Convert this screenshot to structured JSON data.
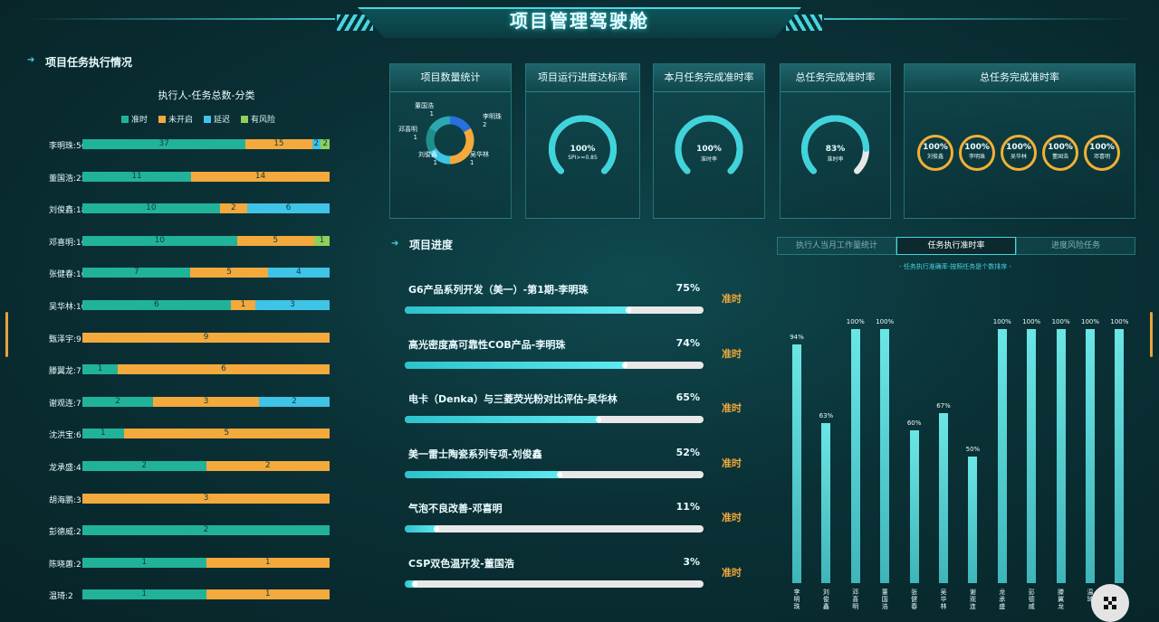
{
  "header": {
    "title": "项目管理驾驶舱"
  },
  "left": {
    "section_title": "项目任务执行情况",
    "chart_title": "执行人-任务总数-分类",
    "colors": {
      "on_time": "#21b39a",
      "not_started": "#f4a93c",
      "delayed": "#3fc3e6",
      "at_risk": "#8fcf5a"
    },
    "legend": [
      "准时",
      "未开启",
      "延迟",
      "有风险"
    ],
    "rows": [
      {
        "label": "李明珠:56",
        "segs": [
          37,
          15,
          2,
          2
        ]
      },
      {
        "label": "董国浩:25",
        "segs": [
          11,
          14,
          0,
          0
        ]
      },
      {
        "label": "刘俊鑫:18",
        "segs": [
          10,
          2,
          6,
          0
        ]
      },
      {
        "label": "邓喜明:16",
        "segs": [
          10,
          5,
          0,
          1
        ]
      },
      {
        "label": "张健春:16",
        "segs": [
          7,
          5,
          4,
          0
        ]
      },
      {
        "label": "吴华林:10",
        "segs": [
          6,
          1,
          3,
          0
        ]
      },
      {
        "label": "甄泽宇:9",
        "segs": [
          0,
          9,
          0,
          0
        ]
      },
      {
        "label": "滕翼龙:7",
        "segs": [
          1,
          6,
          0,
          0
        ]
      },
      {
        "label": "谢观连:7",
        "segs": [
          2,
          3,
          2,
          0
        ]
      },
      {
        "label": "沈洪宝:6",
        "segs": [
          1,
          5,
          0,
          0
        ]
      },
      {
        "label": "龙承盛:4",
        "segs": [
          2,
          2,
          0,
          0
        ]
      },
      {
        "label": "胡海鹏:3",
        "segs": [
          0,
          3,
          0,
          0
        ]
      },
      {
        "label": "彭德威:2",
        "segs": [
          2,
          0,
          0,
          0
        ]
      },
      {
        "label": "陈晓蕙:2",
        "segs": [
          1,
          1,
          0,
          0
        ]
      },
      {
        "label": "温琦:2",
        "segs": [
          1,
          1,
          0,
          0
        ]
      }
    ]
  },
  "kpi": {
    "project_count": {
      "title": "项目数量统计",
      "slices": [
        {
          "name": "董国浩",
          "value": 1,
          "color": "#2a6fe0"
        },
        {
          "name": "李明珠",
          "value": 2,
          "color": "#f4a93c"
        },
        {
          "name": "吴华林",
          "value": 1,
          "color": "#3fc3e6"
        },
        {
          "name": "刘俊鑫",
          "value": 1,
          "color": "#1f8f8a"
        },
        {
          "name": "邓喜明",
          "value": 1,
          "color": "#2ba9b2"
        }
      ]
    },
    "progress_rate": {
      "title": "项目运行进度达标率",
      "value": "100%",
      "sub": "SPI>=0.85",
      "fraction": 1.0
    },
    "monthly_rate": {
      "title": "本月任务完成准时率",
      "value": "100%",
      "sub": "准时率",
      "fraction": 1.0
    },
    "total_rate": {
      "title": "总任务完成准时率",
      "value": "83%",
      "sub": "准时率",
      "fraction": 0.83
    },
    "total_rate_people": {
      "title": "总任务完成准时率",
      "people": [
        {
          "value": "100%",
          "name": "刘俊鑫"
        },
        {
          "value": "100%",
          "name": "李明珠"
        },
        {
          "value": "100%",
          "name": "吴华林"
        },
        {
          "value": "100%",
          "name": "董国浩"
        },
        {
          "value": "100%",
          "name": "邓喜明"
        }
      ]
    }
  },
  "progress": {
    "section_title": "项目进度",
    "items": [
      {
        "name": "G6产品系列开发（美一）-第1期-李明珠",
        "pct": "75%",
        "fraction": 0.75,
        "status": "准时"
      },
      {
        "name": "高光密度高可靠性COB产品-李明珠",
        "pct": "74%",
        "fraction": 0.74,
        "status": "准时"
      },
      {
        "name": "电卡（Denka）与三菱荧光粉对比评估-吴华林",
        "pct": "65%",
        "fraction": 0.65,
        "status": "准时"
      },
      {
        "name": "美一雷士陶瓷系列专项-刘俊鑫",
        "pct": "52%",
        "fraction": 0.52,
        "status": "准时"
      },
      {
        "name": "气泡不良改善-邓喜明",
        "pct": "11%",
        "fraction": 0.11,
        "status": "准时"
      },
      {
        "name": "CSP双色温开发-董国浩",
        "pct": "3%",
        "fraction": 0.03,
        "status": "准时"
      }
    ]
  },
  "right": {
    "tabs": [
      "执行人当月工作量统计",
      "任务执行准时率",
      "进度风险任务"
    ],
    "subtitle": "- 任务执行准确率-按照任务是个数排序 -",
    "bars": [
      {
        "name": "李明珠",
        "value": 94,
        "label": "94%"
      },
      {
        "name": "刘俊鑫",
        "value": 63,
        "label": "63%"
      },
      {
        "name": "邓喜明",
        "value": 100,
        "label": "100%"
      },
      {
        "name": "董国浩",
        "value": 100,
        "label": "100%"
      },
      {
        "name": "张健春",
        "value": 60,
        "label": "60%"
      },
      {
        "name": "吴华林",
        "value": 67,
        "label": "67%"
      },
      {
        "name": "谢观连",
        "value": 50,
        "label": "50%"
      },
      {
        "name": "龙承盛",
        "value": 100,
        "label": "100%"
      },
      {
        "name": "彭德威",
        "value": 100,
        "label": "100%"
      },
      {
        "name": "滕翼龙",
        "value": 100,
        "label": "100%"
      },
      {
        "name": "温琦",
        "value": 100,
        "label": "100%"
      },
      {
        "name": "陈晓",
        "value": 100,
        "label": "100%"
      }
    ]
  }
}
